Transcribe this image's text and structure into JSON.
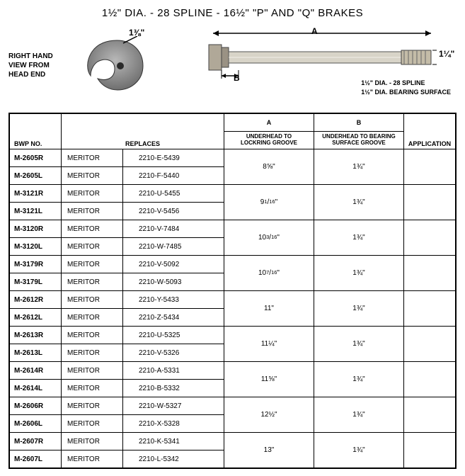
{
  "title": "1½\" DIA. - 28 SPLINE - 16½\" \"P\" AND \"Q\" BRAKES",
  "view_label": "RIGHT HAND\nVIEW FROM\nHEAD END",
  "cam_dim": "1⅜\"",
  "dim_A": "A",
  "dim_B": "B",
  "dim_right": "1¼\"",
  "spline_note1": "1½\" DIA. - 28 SPLINE",
  "spline_note2": "1½\" DIA. BEARING SURFACE",
  "headers": {
    "bwp": "BWP NO.",
    "replaces": "REPLACES",
    "a": "A",
    "b": "B",
    "a_sub": "UNDERHEAD TO\nLOCKRING GROOVE",
    "b_sub": "UNDERHEAD TO BEARING\nSURFACE GROOVE",
    "app": "APPLICATION"
  },
  "rows": [
    {
      "bwp": "M-2605R",
      "mfr": "MERITOR",
      "pn": "2210-E-5439",
      "a": "8⅝\"",
      "b": "1¾\""
    },
    {
      "bwp": "M-2605L",
      "mfr": "MERITOR",
      "pn": "2210-F-5440"
    },
    {
      "bwp": "M-3121R",
      "mfr": "MERITOR",
      "pn": "2210-U-5455",
      "a": "9<span class='frac'>1</span>/<span class='frac'>16</span>\"",
      "b": "1¾\""
    },
    {
      "bwp": "M-3121L",
      "mfr": "MERITOR",
      "pn": "2210-V-5456"
    },
    {
      "bwp": "M-3120R",
      "mfr": "MERITOR",
      "pn": "2210-V-7484",
      "a": "10<span class='frac'>3</span>/<span class='frac'>16</span>\"",
      "b": "1¾\""
    },
    {
      "bwp": "M-3120L",
      "mfr": "MERITOR",
      "pn": "2210-W-7485"
    },
    {
      "bwp": "M-3179R",
      "mfr": "MERITOR",
      "pn": "2210-V-5092",
      "a": "10<span class='frac'>7</span>/<span class='frac'>16</span>\"",
      "b": "1¾\""
    },
    {
      "bwp": "M-3179L",
      "mfr": "MERITOR",
      "pn": "2210-W-5093"
    },
    {
      "bwp": "M-2612R",
      "mfr": "MERITOR",
      "pn": "2210-Y-5433",
      "a": "11\"",
      "b": "1¾\""
    },
    {
      "bwp": "M-2612L",
      "mfr": "MERITOR",
      "pn": "2210-Z-5434"
    },
    {
      "bwp": "M-2613R",
      "mfr": "MERITOR",
      "pn": "2210-U-5325",
      "a": "11¼\"",
      "b": "1¾\""
    },
    {
      "bwp": "M-2613L",
      "mfr": "MERITOR",
      "pn": "2210-V-5326"
    },
    {
      "bwp": "M-2614R",
      "mfr": "MERITOR",
      "pn": "2210-A-5331",
      "a": "11⅝\"",
      "b": "1¾\""
    },
    {
      "bwp": "M-2614L",
      "mfr": "MERITOR",
      "pn": "2210-B-5332"
    },
    {
      "bwp": "M-2606R",
      "mfr": "MERITOR",
      "pn": "2210-W-5327",
      "a": "12½\"",
      "b": "1¾\""
    },
    {
      "bwp": "M-2606L",
      "mfr": "MERITOR",
      "pn": "2210-X-5328"
    },
    {
      "bwp": "M-2607R",
      "mfr": "MERITOR",
      "pn": "2210-K-5341",
      "a": "13\"",
      "b": "1¾\""
    },
    {
      "bwp": "M-2607L",
      "mfr": "MERITOR",
      "pn": "2210-L-5342"
    }
  ]
}
